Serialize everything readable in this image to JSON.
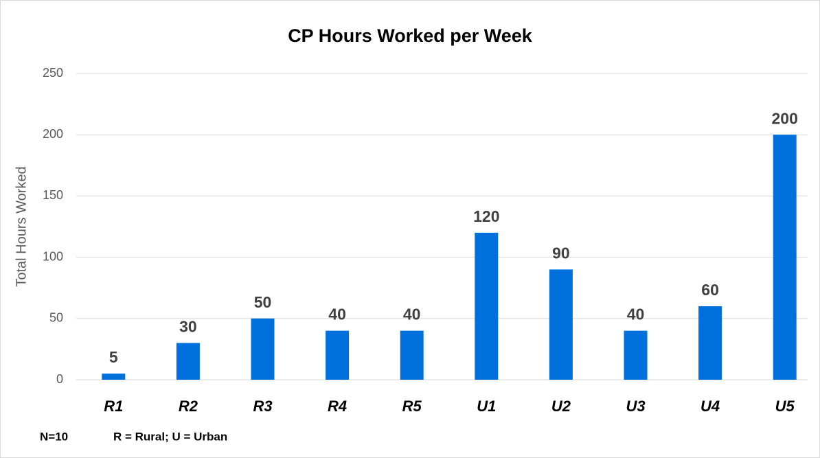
{
  "chart_data": {
    "type": "bar",
    "title": "CP Hours Worked per Week",
    "y_label": "Total Hours Worked",
    "categories": [
      "R1",
      "R2",
      "R3",
      "R4",
      "R5",
      "U1",
      "U2",
      "U3",
      "U4",
      "U5"
    ],
    "values": [
      5,
      30,
      50,
      40,
      40,
      120,
      90,
      40,
      60,
      200
    ],
    "color": "#0070dd",
    "ylim": [
      0,
      250
    ],
    "yticks": [
      0,
      50,
      100,
      150,
      200,
      250
    ],
    "grid": true,
    "annotations": [
      "N=10",
      "R = Rural; U = Urban"
    ]
  }
}
